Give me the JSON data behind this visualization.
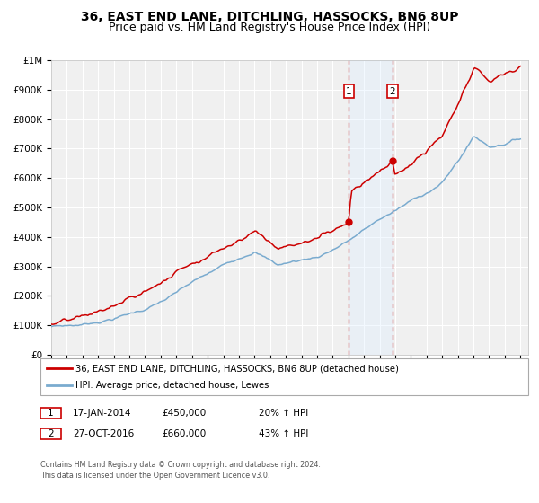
{
  "title": "36, EAST END LANE, DITCHLING, HASSOCKS, BN6 8UP",
  "subtitle": "Price paid vs. HM Land Registry's House Price Index (HPI)",
  "ylim": [
    0,
    1000000
  ],
  "xlim_start": 1995.0,
  "xlim_end": 2025.5,
  "yticks": [
    0,
    100000,
    200000,
    300000,
    400000,
    500000,
    600000,
    700000,
    800000,
    900000,
    1000000
  ],
  "ytick_labels": [
    "£0",
    "£100K",
    "£200K",
    "£300K",
    "£400K",
    "£500K",
    "£600K",
    "£700K",
    "£800K",
    "£900K",
    "£1M"
  ],
  "red_line_color": "#cc0000",
  "blue_line_color": "#7aabcf",
  "sale1_date_x": 2014.04,
  "sale1_price": 450000,
  "sale2_date_x": 2016.82,
  "sale2_price": 660000,
  "vline1_x": 2014.04,
  "vline2_x": 2016.82,
  "shade_color": "#ddeeff",
  "legend_label_red": "36, EAST END LANE, DITCHLING, HASSOCKS, BN6 8UP (detached house)",
  "legend_label_blue": "HPI: Average price, detached house, Lewes",
  "table_row1": [
    "1",
    "17-JAN-2014",
    "£450,000",
    "20% ↑ HPI"
  ],
  "table_row2": [
    "2",
    "27-OCT-2016",
    "£660,000",
    "43% ↑ HPI"
  ],
  "footer_line1": "Contains HM Land Registry data © Crown copyright and database right 2024.",
  "footer_line2": "This data is licensed under the Open Government Licence v3.0.",
  "background_color": "#ffffff",
  "plot_bg_color": "#f0f0f0",
  "grid_color": "#ffffff",
  "title_fontsize": 10,
  "subtitle_fontsize": 9
}
